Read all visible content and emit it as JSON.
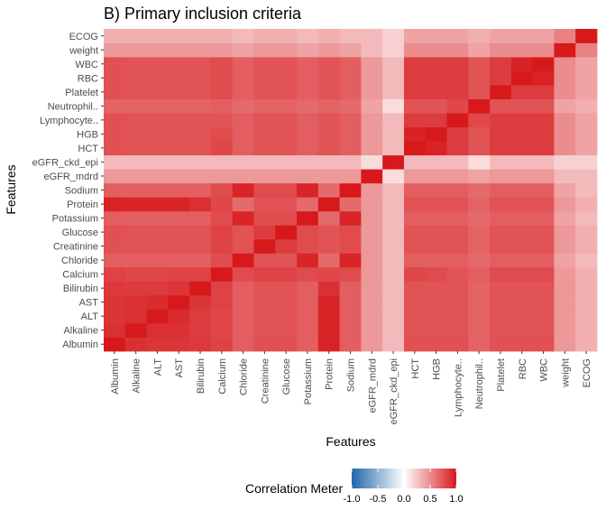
{
  "chart_data": {
    "type": "heatmap",
    "title": "B) Primary inclusion criteria",
    "xlabel": "Features",
    "ylabel": "Features",
    "features": [
      "Albumin",
      "Alkaline",
      "ALT",
      "AST",
      "Bilirubin",
      "Calcium",
      "Chloride",
      "Creatinine",
      "Glucose",
      "Potassium",
      "Protein",
      "Sodium",
      "eGFR_mdrd",
      "eGFR_ckd_epi",
      "HCT",
      "HGB",
      "Lymphocyte..",
      "Neutrophil..",
      "Platelet",
      "RBC",
      "WBC",
      "weight",
      "ECOG"
    ],
    "legend": {
      "title": "Correlation Meter",
      "ticks": [
        -1.0,
        -0.5,
        0.0,
        0.5,
        1.0
      ],
      "tick_labels": [
        "-1.0",
        "-0.5",
        "0.0",
        "0.5",
        "1.0"
      ],
      "low_color": "#2166ac",
      "mid_color": "#ffffff",
      "high_color": "#d7191c"
    },
    "colors": {
      "panel": "#ebebeb",
      "grid": "#ffffff"
    },
    "matrix": [
      [
        1.0,
        0.9,
        0.88,
        0.88,
        0.86,
        0.82,
        0.7,
        0.76,
        0.76,
        0.7,
        0.96,
        0.7,
        0.45,
        0.3,
        0.76,
        0.76,
        0.76,
        0.68,
        0.76,
        0.76,
        0.76,
        0.45,
        0.35
      ],
      [
        0.9,
        1.0,
        0.9,
        0.9,
        0.85,
        0.8,
        0.7,
        0.75,
        0.75,
        0.7,
        0.95,
        0.7,
        0.45,
        0.3,
        0.75,
        0.75,
        0.75,
        0.68,
        0.75,
        0.75,
        0.75,
        0.45,
        0.35
      ],
      [
        0.88,
        0.9,
        1.0,
        0.92,
        0.85,
        0.8,
        0.7,
        0.75,
        0.75,
        0.7,
        0.95,
        0.7,
        0.45,
        0.3,
        0.75,
        0.75,
        0.75,
        0.68,
        0.75,
        0.75,
        0.75,
        0.45,
        0.35
      ],
      [
        0.88,
        0.9,
        0.92,
        1.0,
        0.88,
        0.82,
        0.7,
        0.75,
        0.75,
        0.7,
        0.95,
        0.7,
        0.45,
        0.3,
        0.75,
        0.75,
        0.75,
        0.68,
        0.75,
        0.75,
        0.75,
        0.45,
        0.35
      ],
      [
        0.86,
        0.85,
        0.85,
        0.88,
        1.0,
        0.82,
        0.7,
        0.75,
        0.75,
        0.7,
        0.9,
        0.7,
        0.45,
        0.3,
        0.75,
        0.75,
        0.75,
        0.68,
        0.75,
        0.75,
        0.75,
        0.45,
        0.35
      ],
      [
        0.82,
        0.8,
        0.8,
        0.82,
        0.82,
        1.0,
        0.78,
        0.82,
        0.82,
        0.78,
        0.8,
        0.78,
        0.45,
        0.3,
        0.8,
        0.78,
        0.75,
        0.7,
        0.78,
        0.78,
        0.78,
        0.45,
        0.35
      ],
      [
        0.7,
        0.7,
        0.7,
        0.7,
        0.7,
        0.78,
        1.0,
        0.75,
        0.75,
        0.95,
        0.65,
        0.95,
        0.45,
        0.3,
        0.7,
        0.7,
        0.7,
        0.65,
        0.7,
        0.7,
        0.7,
        0.4,
        0.3
      ],
      [
        0.76,
        0.75,
        0.75,
        0.75,
        0.75,
        0.82,
        0.75,
        1.0,
        0.85,
        0.78,
        0.75,
        0.78,
        0.45,
        0.3,
        0.75,
        0.75,
        0.75,
        0.68,
        0.75,
        0.75,
        0.75,
        0.45,
        0.35
      ],
      [
        0.76,
        0.75,
        0.75,
        0.75,
        0.75,
        0.82,
        0.75,
        0.85,
        1.0,
        0.78,
        0.75,
        0.78,
        0.45,
        0.3,
        0.75,
        0.75,
        0.75,
        0.68,
        0.75,
        0.75,
        0.75,
        0.45,
        0.35
      ],
      [
        0.7,
        0.7,
        0.7,
        0.7,
        0.7,
        0.78,
        0.95,
        0.78,
        0.78,
        1.0,
        0.65,
        0.95,
        0.45,
        0.3,
        0.7,
        0.7,
        0.7,
        0.65,
        0.7,
        0.7,
        0.7,
        0.4,
        0.3
      ],
      [
        0.96,
        0.95,
        0.95,
        0.95,
        0.9,
        0.8,
        0.65,
        0.75,
        0.75,
        0.65,
        1.0,
        0.65,
        0.45,
        0.3,
        0.75,
        0.75,
        0.75,
        0.68,
        0.75,
        0.75,
        0.75,
        0.45,
        0.35
      ],
      [
        0.7,
        0.7,
        0.7,
        0.7,
        0.7,
        0.78,
        0.95,
        0.78,
        0.78,
        0.95,
        0.65,
        1.0,
        0.45,
        0.3,
        0.7,
        0.7,
        0.7,
        0.65,
        0.7,
        0.7,
        0.7,
        0.4,
        0.3
      ],
      [
        0.45,
        0.45,
        0.45,
        0.45,
        0.45,
        0.45,
        0.45,
        0.45,
        0.45,
        0.45,
        0.45,
        0.45,
        1.0,
        0.15,
        0.45,
        0.45,
        0.45,
        0.4,
        0.45,
        0.45,
        0.45,
        0.3,
        0.3
      ],
      [
        0.3,
        0.3,
        0.3,
        0.3,
        0.3,
        0.3,
        0.3,
        0.3,
        0.3,
        0.3,
        0.3,
        0.3,
        0.15,
        1.0,
        0.3,
        0.3,
        0.3,
        0.15,
        0.3,
        0.3,
        0.3,
        0.2,
        0.2
      ],
      [
        0.76,
        0.75,
        0.75,
        0.75,
        0.75,
        0.8,
        0.7,
        0.75,
        0.75,
        0.7,
        0.75,
        0.7,
        0.45,
        0.3,
        1.0,
        0.96,
        0.85,
        0.75,
        0.85,
        0.85,
        0.85,
        0.5,
        0.4
      ],
      [
        0.76,
        0.75,
        0.75,
        0.75,
        0.75,
        0.78,
        0.7,
        0.75,
        0.75,
        0.7,
        0.75,
        0.7,
        0.45,
        0.3,
        0.96,
        1.0,
        0.85,
        0.75,
        0.85,
        0.85,
        0.85,
        0.5,
        0.4
      ],
      [
        0.76,
        0.75,
        0.75,
        0.75,
        0.75,
        0.75,
        0.7,
        0.75,
        0.75,
        0.7,
        0.75,
        0.7,
        0.45,
        0.3,
        0.85,
        0.85,
        1.0,
        0.8,
        0.85,
        0.85,
        0.85,
        0.5,
        0.4
      ],
      [
        0.68,
        0.68,
        0.68,
        0.68,
        0.68,
        0.7,
        0.65,
        0.68,
        0.68,
        0.65,
        0.68,
        0.65,
        0.4,
        0.15,
        0.75,
        0.75,
        0.8,
        1.0,
        0.75,
        0.75,
        0.75,
        0.4,
        0.35
      ],
      [
        0.76,
        0.75,
        0.75,
        0.75,
        0.75,
        0.78,
        0.7,
        0.75,
        0.75,
        0.7,
        0.75,
        0.7,
        0.45,
        0.3,
        0.85,
        0.85,
        0.85,
        0.75,
        1.0,
        0.85,
        0.85,
        0.5,
        0.4
      ],
      [
        0.76,
        0.75,
        0.75,
        0.75,
        0.75,
        0.78,
        0.7,
        0.75,
        0.75,
        0.7,
        0.75,
        0.7,
        0.45,
        0.3,
        0.85,
        0.85,
        0.85,
        0.75,
        0.85,
        1.0,
        0.96,
        0.5,
        0.4
      ],
      [
        0.76,
        0.75,
        0.75,
        0.75,
        0.75,
        0.78,
        0.7,
        0.75,
        0.75,
        0.7,
        0.75,
        0.7,
        0.45,
        0.3,
        0.85,
        0.85,
        0.85,
        0.75,
        0.85,
        0.96,
        1.0,
        0.5,
        0.4
      ],
      [
        0.45,
        0.45,
        0.45,
        0.45,
        0.45,
        0.45,
        0.4,
        0.45,
        0.45,
        0.4,
        0.45,
        0.4,
        0.3,
        0.2,
        0.5,
        0.5,
        0.5,
        0.4,
        0.5,
        0.5,
        0.5,
        1.0,
        0.55
      ],
      [
        0.35,
        0.35,
        0.35,
        0.35,
        0.35,
        0.35,
        0.3,
        0.35,
        0.35,
        0.3,
        0.35,
        0.3,
        0.3,
        0.2,
        0.4,
        0.4,
        0.4,
        0.35,
        0.4,
        0.4,
        0.4,
        0.55,
        1.0
      ]
    ]
  }
}
